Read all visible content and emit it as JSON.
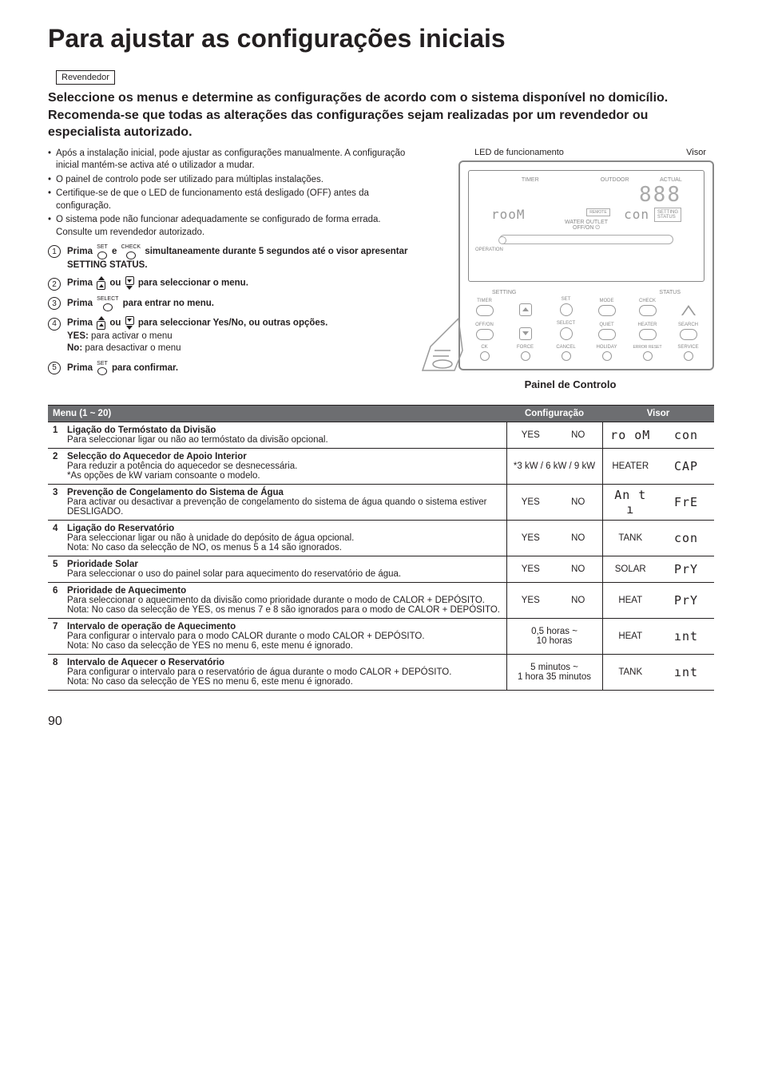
{
  "page": {
    "title": "Para ajustar as configurações iniciais",
    "dealer_box": "Revendedor",
    "heading": "Seleccione os menus e determine as configurações de acordo com o sistema disponível no domicílio. Recomenda-se que todas as alterações das configurações sejam realizadas por um revendedor ou especialista autorizado.",
    "page_number": "90"
  },
  "bullets": [
    "Após a instalação inicial, pode ajustar as configurações manualmente. A configuração inicial mantém-se activa até o utilizador a mudar.",
    "O painel de controlo pode ser utilizado para múltiplas instalações.",
    "Certifique-se de que o LED de funcionamento está desligado (OFF) antes da configuração.",
    "O sistema pode não funcionar adequadamente se configurado de forma errada. Consulte um revendedor autorizado."
  ],
  "steps": {
    "s1": {
      "pre": "Prima ",
      "btn1": "SET",
      "mid": " e ",
      "btn2": "CHECK",
      "post": " simultaneamente durante 5 segundos até o visor apresentar SETTING STATUS."
    },
    "s2": {
      "pre": "Prima ",
      "mid": " ou ",
      "post": " para seleccionar o menu."
    },
    "s3": {
      "pre": "Prima ",
      "btn": "SELECT",
      "post": " para entrar no menu."
    },
    "s4": {
      "pre": "Prima ",
      "mid": " ou ",
      "post": " para seleccionar Yes/No, ou outras opções.",
      "yes_label": "YES:",
      "yes_text": " para activar o menu",
      "no_label": "No:",
      "no_text": " para desactivar o menu"
    },
    "s5": {
      "pre": "Prima ",
      "btn": "SET",
      "post": " para confirmar."
    }
  },
  "diagram": {
    "led_label": "LED de funcionamento",
    "visor_label": "Visor",
    "caption": "Painel de Controlo",
    "lcd": {
      "timer": "TIMER",
      "outdoor": "OUTDOOR",
      "actual": "ACTUAL",
      "big": "888",
      "room": "rooM",
      "con": "con",
      "remote": "REMOTE",
      "setting": "SETTING",
      "status": "STATUS",
      "operation": "OPERATION",
      "water_outlet": "WATER OUTLET",
      "offon": "OFF/ON ⏻"
    },
    "buttons": {
      "setting_hdr": "SETTING",
      "status_hdr": "STATUS",
      "timer": "TIMER",
      "set": "SET",
      "mode": "MODE",
      "check": "CHECK",
      "offon": "OFF/ON",
      "select": "SELECT",
      "quiet": "QUIET",
      "heater": "HEATER",
      "search": "SEARCH",
      "clock": "CK",
      "force": "FORCE",
      "cancel": "CANCEL",
      "holiday": "HOLIDAY",
      "error_reset": "ERROR RESET",
      "service": "SERVICE"
    }
  },
  "table": {
    "header": {
      "menu": "Menu (1 ~ 20)",
      "config": "Configuração",
      "visor": "Visor"
    },
    "rows": [
      {
        "n": "1",
        "title": "Ligação do Termóstato da Divisão",
        "desc": "Para seleccionar ligar ou não ao termóstato da divisão opcional.",
        "cfg1": "YES",
        "cfg2": "NO",
        "vis1": "ro oM",
        "vis2": "con"
      },
      {
        "n": "2",
        "title": "Selecção do Aquecedor de Apoio Interior",
        "desc": "Para reduzir a potência do aquecedor se desnecessária.\n*As opções de kW variam consoante o modelo.",
        "cfg_wide": "*3 kW / 6 kW / 9 kW",
        "vis1": "HEATER",
        "vis2": "CAP"
      },
      {
        "n": "3",
        "title": "Prevenção de Congelamento do Sistema de Água",
        "desc": "Para activar ou desactivar a prevenção de congelamento do sistema de água quando o sistema estiver DESLIGADO.",
        "cfg1": "YES",
        "cfg2": "NO",
        "vis1": "An t ı",
        "vis2": "FrE"
      },
      {
        "n": "4",
        "title": "Ligação do Reservatório",
        "desc": "Para seleccionar ligar ou não à unidade do depósito de água opcional.\nNota: No caso da selecção de NO, os menus 5 a 14 são ignorados.",
        "cfg1": "YES",
        "cfg2": "NO",
        "vis1": "TANK",
        "vis2": "con"
      },
      {
        "n": "5",
        "title": "Prioridade Solar",
        "desc": "Para seleccionar o uso do painel solar para aquecimento do reservatório de água.",
        "cfg1": "YES",
        "cfg2": "NO",
        "vis1": "SOLAR",
        "vis2": "PrY"
      },
      {
        "n": "6",
        "title": "Prioridade de Aquecimento",
        "desc": "Para seleccionar o aquecimento da divisão como prioridade durante o modo de CALOR + DEPÓSITO.\nNota: No caso da selecção de YES, os menus 7 e 8 são ignorados para o modo de CALOR + DEPÓSITO.",
        "cfg1": "YES",
        "cfg2": "NO",
        "vis1": "HEAT",
        "vis2": "PrY"
      },
      {
        "n": "7",
        "title": "Intervalo de operação de Aquecimento",
        "desc": "Para configurar o intervalo para o modo CALOR durante o modo CALOR + DEPÓSITO.\nNota: No caso da selecção de YES no menu 6, este menu é ignorado.",
        "cfg_wide": "0,5 horas ~\n10 horas",
        "vis1": "HEAT",
        "vis2": "ınt"
      },
      {
        "n": "8",
        "title": "Intervalo de Aquecer o Reservatório",
        "desc": "Para configurar o intervalo para o reservatório de água durante o modo CALOR + DEPÓSITO.\nNota: No caso da selecção de YES no menu 6, este menu é ignorado.",
        "cfg_wide": "5 minutos ~\n1 hora 35 minutos",
        "vis1": "TANK",
        "vis2": "ınt"
      }
    ]
  }
}
